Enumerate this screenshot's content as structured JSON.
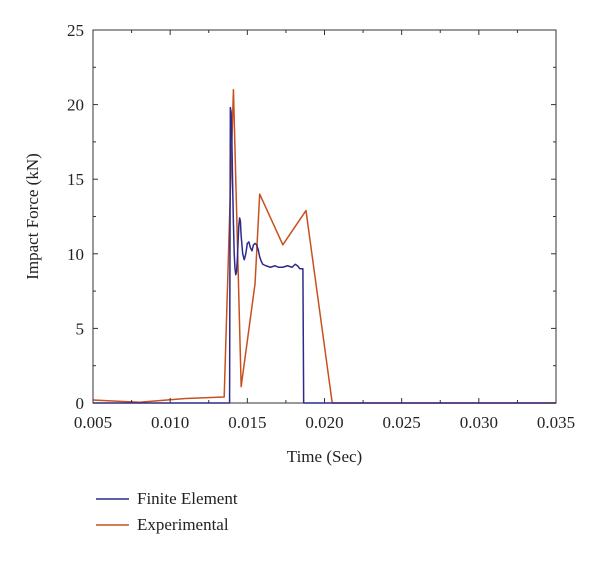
{
  "chart_data": {
    "type": "line",
    "xlabel": "Time (Sec)",
    "ylabel": "Impact Force (kN)",
    "xlim": [
      0.005,
      0.035
    ],
    "ylim": [
      0,
      25
    ],
    "xticks": [
      "0.005",
      "0.010",
      "0.015",
      "0.020",
      "0.025",
      "0.030",
      "0.035"
    ],
    "yticks": [
      "0",
      "5",
      "10",
      "15",
      "20",
      "25"
    ],
    "grid": false,
    "legend_position": "bottom-left",
    "series": [
      {
        "name": "Finite Element",
        "color": "#2e2a8a",
        "points": [
          [
            0.005,
            0
          ],
          [
            0.0138,
            0
          ],
          [
            0.01385,
            0
          ],
          [
            0.0139,
            19.8
          ],
          [
            0.01395,
            19.5
          ],
          [
            0.014,
            17.5
          ],
          [
            0.01405,
            14.5
          ],
          [
            0.0141,
            12.0
          ],
          [
            0.01415,
            10.0
          ],
          [
            0.0142,
            9.0
          ],
          [
            0.01425,
            8.6
          ],
          [
            0.0143,
            8.8
          ],
          [
            0.01435,
            9.6
          ],
          [
            0.0144,
            10.8
          ],
          [
            0.01445,
            11.9
          ],
          [
            0.0145,
            12.4
          ],
          [
            0.01455,
            12.2
          ],
          [
            0.0146,
            11.2
          ],
          [
            0.0147,
            10.0
          ],
          [
            0.0148,
            9.6
          ],
          [
            0.0149,
            10.0
          ],
          [
            0.015,
            10.7
          ],
          [
            0.0151,
            10.8
          ],
          [
            0.0152,
            10.4
          ],
          [
            0.0153,
            10.2
          ],
          [
            0.0154,
            10.6
          ],
          [
            0.0155,
            10.7
          ],
          [
            0.0156,
            10.6
          ],
          [
            0.0157,
            10.3
          ],
          [
            0.0158,
            9.8
          ],
          [
            0.0159,
            9.5
          ],
          [
            0.016,
            9.3
          ],
          [
            0.0162,
            9.2
          ],
          [
            0.0165,
            9.1
          ],
          [
            0.0168,
            9.2
          ],
          [
            0.017,
            9.1
          ],
          [
            0.0173,
            9.1
          ],
          [
            0.0176,
            9.2
          ],
          [
            0.0179,
            9.1
          ],
          [
            0.0181,
            9.3
          ],
          [
            0.01825,
            9.2
          ],
          [
            0.0184,
            9.0
          ],
          [
            0.0186,
            9.0
          ],
          [
            0.01865,
            0
          ],
          [
            0.035,
            0
          ]
        ]
      },
      {
        "name": "Experimental",
        "color": "#c8501e",
        "points": [
          [
            0.005,
            0.2
          ],
          [
            0.008,
            0.05
          ],
          [
            0.011,
            0.3
          ],
          [
            0.0135,
            0.4
          ],
          [
            0.0141,
            21.0
          ],
          [
            0.0146,
            1.1
          ],
          [
            0.0155,
            8.0
          ],
          [
            0.0158,
            14.0
          ],
          [
            0.0173,
            10.6
          ],
          [
            0.0188,
            12.9
          ],
          [
            0.0205,
            0
          ],
          [
            0.035,
            0
          ]
        ]
      }
    ]
  }
}
